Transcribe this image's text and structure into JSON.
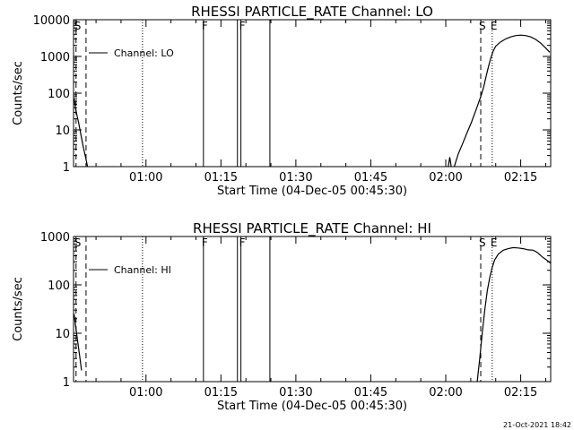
{
  "footer": {
    "timestamp": "21-Oct-2021 18:42"
  },
  "chart_data": [
    {
      "type": "line",
      "title": "RHESSI PARTICLE_RATE Channel: LO",
      "xlabel": "Start Time (04-Dec-05 00:45:30)",
      "ylabel": "Counts/sec",
      "y_scale": "log",
      "ylim": [
        1,
        10000
      ],
      "xlim_minutes": [
        45.5,
        141
      ],
      "x_ticks": [
        {
          "minute": 60,
          "label": "01:00"
        },
        {
          "minute": 75,
          "label": "01:15"
        },
        {
          "minute": 90,
          "label": "01:30"
        },
        {
          "minute": 105,
          "label": "01:45"
        },
        {
          "minute": 120,
          "label": "02:00"
        },
        {
          "minute": 135,
          "label": "02:15"
        }
      ],
      "y_ticks": [
        {
          "value": 1,
          "label": "1"
        },
        {
          "value": 10,
          "label": "10"
        },
        {
          "value": 100,
          "label": "100"
        },
        {
          "value": 1000,
          "label": "1000"
        },
        {
          "value": 10000,
          "label": "10000"
        }
      ],
      "legend": {
        "label": "Channel: LO",
        "placement": "top-left"
      },
      "series": [
        {
          "name": "Channel: LO",
          "segments": [
            [
              [
                45.6,
                70
              ],
              [
                46.0,
                32
              ],
              [
                46.5,
                16
              ],
              [
                47.0,
                7
              ],
              [
                47.5,
                3.2
              ],
              [
                48.0,
                1.6
              ],
              [
                48.3,
                1.0
              ]
            ],
            [
              [
                120.5,
                1.0
              ],
              [
                120.8,
                1.8
              ],
              [
                121.1,
                1.0
              ]
            ],
            [
              [
                121.7,
                1.0
              ],
              [
                122.5,
                2.2
              ],
              [
                123.3,
                4
              ],
              [
                124.2,
                8
              ],
              [
                125.2,
                17
              ],
              [
                126.2,
                40
              ],
              [
                127.0,
                80
              ],
              [
                127.6,
                150
              ],
              [
                128.0,
                260
              ],
              [
                128.5,
                500
              ],
              [
                129.0,
                900
              ],
              [
                129.5,
                1400
              ],
              [
                130.0,
                1900
              ],
              [
                131.0,
                2500
              ],
              [
                132.0,
                3000
              ],
              [
                133.0,
                3400
              ],
              [
                134.0,
                3700
              ],
              [
                135.0,
                3800
              ],
              [
                136.0,
                3700
              ],
              [
                137.0,
                3400
              ],
              [
                138.0,
                2900
              ],
              [
                139.0,
                2300
              ],
              [
                140.0,
                1700
              ],
              [
                140.8,
                1300
              ]
            ]
          ]
        }
      ],
      "markers": [
        {
          "minute": 46.0,
          "style": "dashed",
          "label": "S"
        },
        {
          "minute": 48.0,
          "style": "dashed",
          "label": ""
        },
        {
          "minute": 59.3,
          "style": "dotted",
          "label": ""
        },
        {
          "minute": 71.5,
          "style": "solid",
          "label": "F"
        },
        {
          "minute": 78.3,
          "style": "solid",
          "label": ""
        },
        {
          "minute": 79.0,
          "style": "solid",
          "label": "F"
        },
        {
          "minute": 84.8,
          "style": "solid",
          "label": ""
        },
        {
          "minute": 127.0,
          "style": "dashed",
          "label": "S"
        },
        {
          "minute": 129.3,
          "style": "dotted",
          "label": "E"
        },
        {
          "minute": 141.0,
          "style": "dashdot",
          "label": ""
        }
      ]
    },
    {
      "type": "line",
      "title": "RHESSI PARTICLE_RATE Channel: HI",
      "xlabel": "Start Time (04-Dec-05 00:45:30)",
      "ylabel": "Counts/sec",
      "y_scale": "log",
      "ylim": [
        1,
        1000
      ],
      "xlim_minutes": [
        45.5,
        141
      ],
      "x_ticks": [
        {
          "minute": 60,
          "label": "01:00"
        },
        {
          "minute": 75,
          "label": "01:15"
        },
        {
          "minute": 90,
          "label": "01:30"
        },
        {
          "minute": 105,
          "label": "01:45"
        },
        {
          "minute": 120,
          "label": "02:00"
        },
        {
          "minute": 135,
          "label": "02:15"
        }
      ],
      "y_ticks": [
        {
          "value": 1,
          "label": "1"
        },
        {
          "value": 10,
          "label": "10"
        },
        {
          "value": 100,
          "label": "100"
        },
        {
          "value": 1000,
          "label": "1000"
        }
      ],
      "legend": {
        "label": "Channel: HI",
        "placement": "top-left"
      },
      "series": [
        {
          "name": "Channel: HI",
          "segments": [
            [
              [
                45.6,
                25
              ],
              [
                46.0,
                12
              ],
              [
                46.4,
                6
              ],
              [
                46.8,
                3
              ],
              [
                47.1,
                1.7
              ]
            ],
            [
              [
                126.3,
                1.0
              ],
              [
                126.8,
                3
              ],
              [
                127.3,
                10
              ],
              [
                127.8,
                30
              ],
              [
                128.3,
                75
              ],
              [
                128.8,
                140
              ],
              [
                129.3,
                230
              ],
              [
                129.8,
                330
              ],
              [
                130.5,
                430
              ],
              [
                131.5,
                520
              ],
              [
                132.5,
                560
              ],
              [
                133.5,
                590
              ],
              [
                134.5,
                580
              ],
              [
                135.5,
                560
              ],
              [
                136.5,
                530
              ],
              [
                137.5,
                520
              ],
              [
                138.3,
                470
              ],
              [
                139.3,
                380
              ],
              [
                140.3,
                320
              ],
              [
                141.0,
                280
              ]
            ]
          ]
        }
      ],
      "markers": [
        {
          "minute": 46.0,
          "style": "dashed",
          "label": "S"
        },
        {
          "minute": 48.0,
          "style": "dashed",
          "label": ""
        },
        {
          "minute": 59.3,
          "style": "dotted",
          "label": ""
        },
        {
          "minute": 71.5,
          "style": "solid",
          "label": "F"
        },
        {
          "minute": 78.3,
          "style": "solid",
          "label": ""
        },
        {
          "minute": 79.0,
          "style": "solid",
          "label": "F"
        },
        {
          "minute": 84.8,
          "style": "solid",
          "label": ""
        },
        {
          "minute": 127.0,
          "style": "dashed",
          "label": "S"
        },
        {
          "minute": 129.3,
          "style": "dotted",
          "label": "E"
        },
        {
          "minute": 141.0,
          "style": "dashdot",
          "label": ""
        }
      ]
    }
  ]
}
